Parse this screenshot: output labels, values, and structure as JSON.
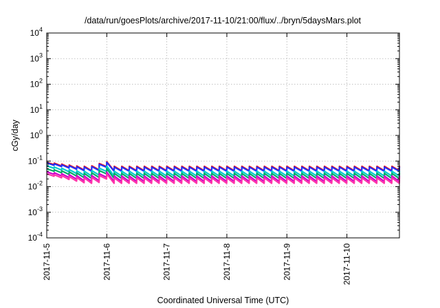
{
  "chart_data": {
    "type": "line",
    "title": "/data/run/goesPlots/archive/2017-11-10/21:00/flux/../bryn/5daysMars.plot",
    "xlabel": "Coordinated Universal Time (UTC)",
    "ylabel": "cGy/day",
    "yscale": "log",
    "ylim": [
      0.0001,
      10000
    ],
    "xlim": [
      "2017-11-05 00:00",
      "2017-11-10 21:00"
    ],
    "x_ticks": [
      "2017-11-5",
      "2017-11-6",
      "2017-11-7",
      "2017-11-8",
      "2017-11-9",
      "2017-11-10"
    ],
    "y_ticks": [
      {
        "base": "10",
        "exp": "4"
      },
      {
        "base": "10",
        "exp": "3"
      },
      {
        "base": "10",
        "exp": "2"
      },
      {
        "base": "10",
        "exp": "1"
      },
      {
        "base": "10",
        "exp": "0"
      },
      {
        "base": "10",
        "exp": "-1"
      },
      {
        "base": "10",
        "exp": "-2"
      },
      {
        "base": "10",
        "exp": "-3"
      },
      {
        "base": "10",
        "exp": "-4"
      }
    ],
    "grid": true,
    "legend": "none",
    "sawtooth_period_hours": 3,
    "series": [
      {
        "color": "#ff0000",
        "peak": 0.062,
        "trough": 0.042,
        "start": 0.09,
        "event_peak": 0.09
      },
      {
        "color": "#2233ff",
        "peak": 0.058,
        "trough": 0.04,
        "start": 0.085,
        "event_peak": 0.085
      },
      {
        "color": "#00cccc",
        "peak": 0.04,
        "trough": 0.026,
        "start": 0.065,
        "event_peak": 0.06
      },
      {
        "color": "#00aa66",
        "peak": 0.033,
        "trough": 0.021,
        "start": 0.05,
        "event_peak": 0.048
      },
      {
        "color": "#cc00cc",
        "peak": 0.026,
        "trough": 0.016,
        "start": 0.038,
        "event_peak": 0.035
      },
      {
        "color": "#ff33aa",
        "peak": 0.022,
        "trough": 0.0135,
        "start": 0.032,
        "event_peak": 0.03
      }
    ]
  }
}
